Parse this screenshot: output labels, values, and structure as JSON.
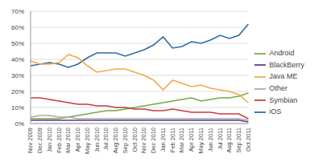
{
  "chart_data": {
    "type": "line",
    "categories": [
      "Nov 2009",
      "Dec 2009",
      "Jan 2010",
      "Feb 2010",
      "Mar 2010",
      "Apr 2010",
      "May 2010",
      "Jun 2010",
      "Jul 2010",
      "Aug 2010",
      "Sep 2010",
      "Oct 2010",
      "Nov 2010",
      "Dec 2010",
      "Jan 2011",
      "Feb 2011",
      "Mar 2011",
      "Apr 2011",
      "May 2011",
      "Jun 2011",
      "Jul 2011",
      "Aug 2011",
      "Sep 2011",
      "Oct 2011"
    ],
    "series": [
      {
        "name": "iOS",
        "color": "#2f6aa5",
        "values": [
          36,
          37,
          38,
          37,
          35,
          37,
          41,
          44,
          44,
          44,
          42,
          44,
          46,
          49,
          54,
          47,
          48,
          51,
          50,
          52,
          55,
          53,
          55,
          62
        ]
      },
      {
        "name": "Android",
        "color": "#72ab4a",
        "values": [
          3,
          3,
          3,
          3,
          4,
          5,
          6,
          7,
          8,
          8,
          9,
          10,
          11,
          12,
          13,
          14,
          15,
          16,
          14,
          15,
          16,
          16,
          17,
          19
        ]
      },
      {
        "name": "Java ME",
        "color": "#f2a94e",
        "values": [
          39,
          37,
          37,
          38,
          43,
          41,
          36,
          32,
          33,
          34,
          34,
          32,
          30,
          27,
          21,
          27,
          25,
          23,
          24,
          22,
          21,
          20,
          18,
          13
        ]
      },
      {
        "name": "Symbian",
        "color": "#cc3a3a",
        "values": [
          16,
          16,
          15,
          14,
          13,
          12,
          12,
          11,
          11,
          10,
          10,
          9,
          9,
          8,
          8,
          9,
          8,
          7,
          7,
          7,
          6,
          6,
          6,
          3
        ]
      },
      {
        "name": "BlackBerry",
        "color": "#5b3a8e",
        "values": [
          2,
          2,
          2,
          2,
          2,
          2,
          2,
          2,
          2,
          2,
          2,
          2,
          2,
          2,
          2,
          2,
          2,
          2,
          2,
          2,
          2,
          2,
          2,
          1
        ]
      },
      {
        "name": "Other",
        "color": "#aaaaaa",
        "values": [
          4,
          5,
          5,
          4,
          4,
          3,
          3,
          3,
          3,
          3,
          3,
          3,
          3,
          3,
          3,
          3,
          3,
          3,
          3,
          3,
          3,
          3,
          3,
          2
        ]
      }
    ],
    "ylim": [
      0,
      70
    ],
    "yticks": [
      {
        "value": 0,
        "label": "0%"
      },
      {
        "value": 10,
        "label": "10%"
      },
      {
        "value": 20,
        "label": "20%"
      },
      {
        "value": 30,
        "label": "30%"
      },
      {
        "value": 40,
        "label": "40%"
      },
      {
        "value": 50,
        "label": "50%"
      },
      {
        "value": 60,
        "label": "60%"
      },
      {
        "value": 70,
        "label": "70%"
      }
    ],
    "grid": true,
    "legend": "right"
  }
}
